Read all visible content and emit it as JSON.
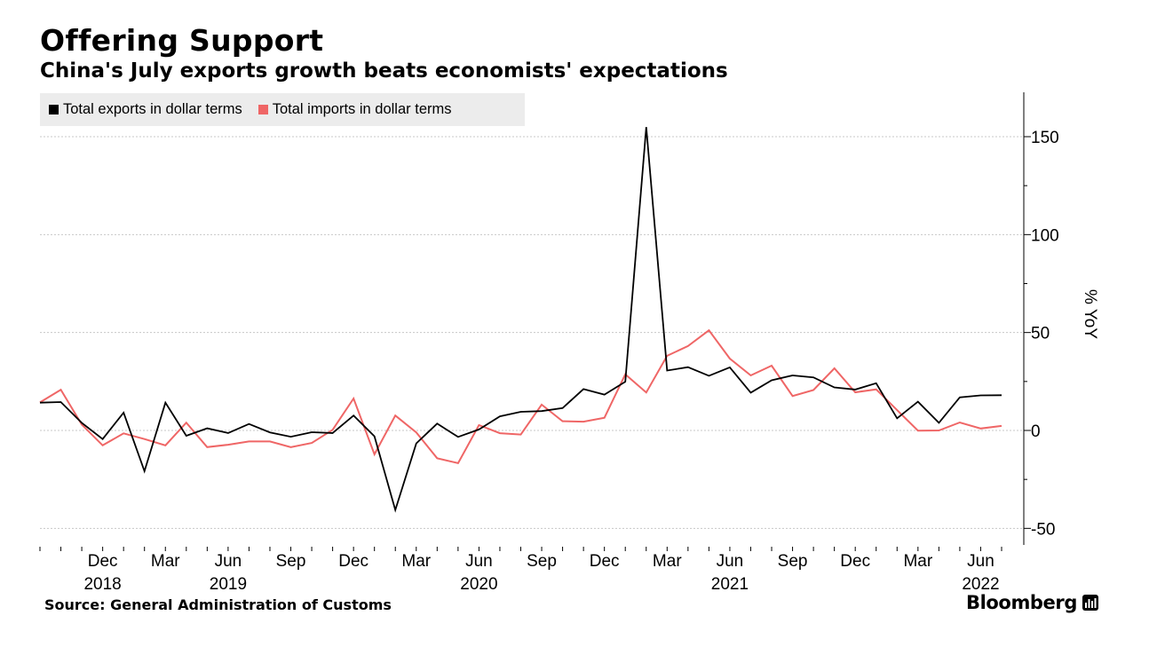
{
  "chart_data": {
    "type": "line",
    "title": "Offering Support",
    "subtitle": "China's July exports growth beats economists' expectations",
    "ylabel": "% YoY",
    "ylim": [
      -58,
      175
    ],
    "y_ticks": [
      150,
      100,
      50,
      0,
      -50
    ],
    "y_axis_side": "right",
    "grid": true,
    "legend_position": "top-left",
    "x": [
      "2018-09",
      "2018-10",
      "2018-11",
      "2018-12",
      "2019-01",
      "2019-02",
      "2019-03",
      "2019-04",
      "2019-05",
      "2019-06",
      "2019-07",
      "2019-08",
      "2019-09",
      "2019-10",
      "2019-11",
      "2019-12",
      "2020-01",
      "2020-02",
      "2020-03",
      "2020-04",
      "2020-05",
      "2020-06",
      "2020-07",
      "2020-08",
      "2020-09",
      "2020-10",
      "2020-11",
      "2020-12",
      "2021-01",
      "2021-02",
      "2021-03",
      "2021-04",
      "2021-05",
      "2021-06",
      "2021-07",
      "2021-08",
      "2021-09",
      "2021-10",
      "2021-11",
      "2021-12",
      "2022-01",
      "2022-02",
      "2022-03",
      "2022-04",
      "2022-05",
      "2022-06",
      "2022-07"
    ],
    "x_tick_labels": [
      {
        "month": "2018-12",
        "label": "Dec",
        "year": "2018"
      },
      {
        "month": "2019-03",
        "label": "Mar",
        "year": ""
      },
      {
        "month": "2019-06",
        "label": "Jun",
        "year": "2019"
      },
      {
        "month": "2019-09",
        "label": "Sep",
        "year": ""
      },
      {
        "month": "2019-12",
        "label": "Dec",
        "year": ""
      },
      {
        "month": "2020-03",
        "label": "Mar",
        "year": ""
      },
      {
        "month": "2020-06",
        "label": "Jun",
        "year": "2020"
      },
      {
        "month": "2020-09",
        "label": "Sep",
        "year": ""
      },
      {
        "month": "2020-12",
        "label": "Dec",
        "year": ""
      },
      {
        "month": "2021-03",
        "label": "Mar",
        "year": ""
      },
      {
        "month": "2021-06",
        "label": "Jun",
        "year": "2021"
      },
      {
        "month": "2021-09",
        "label": "Sep",
        "year": ""
      },
      {
        "month": "2021-12",
        "label": "Dec",
        "year": ""
      },
      {
        "month": "2022-03",
        "label": "Mar",
        "year": ""
      },
      {
        "month": "2022-06",
        "label": "Jun",
        "year": "2022"
      }
    ],
    "series": [
      {
        "name": "Total exports in dollar terms",
        "color": "#000000",
        "values": [
          14.2,
          14.5,
          3.9,
          -4.4,
          9.1,
          -20.8,
          14.2,
          -2.7,
          1.1,
          -1.3,
          3.3,
          -1.0,
          -3.2,
          -0.9,
          -1.3,
          7.6,
          -3.0,
          -40.6,
          -6.6,
          3.5,
          -3.3,
          0.5,
          7.2,
          9.5,
          9.9,
          11.4,
          21.1,
          18.3,
          24.9,
          154.9,
          30.6,
          32.3,
          27.9,
          32.2,
          19.3,
          25.6,
          28.1,
          27.1,
          22.0,
          20.9,
          24.1,
          6.2,
          14.7,
          3.9,
          16.9,
          17.9,
          18.0
        ]
      },
      {
        "name": "Total imports in dollar terms",
        "color": "#ef6666",
        "values": [
          14.3,
          20.8,
          3.0,
          -7.6,
          -1.5,
          -4.4,
          -7.6,
          4.0,
          -8.5,
          -7.3,
          -5.6,
          -5.6,
          -8.5,
          -6.4,
          0.3,
          16.3,
          -12.2,
          7.6,
          -1.0,
          -14.2,
          -16.7,
          2.7,
          -1.4,
          -2.1,
          13.2,
          4.7,
          4.5,
          6.5,
          28.7,
          19.4,
          38.1,
          43.1,
          51.1,
          36.7,
          28.1,
          33.1,
          17.6,
          20.6,
          31.7,
          19.5,
          21.0,
          10.4,
          -0.1,
          0.0,
          4.1,
          1.0,
          2.3
        ]
      }
    ]
  },
  "footer": {
    "source": "Source: General Administration of Customs",
    "brand": "Bloomberg"
  }
}
